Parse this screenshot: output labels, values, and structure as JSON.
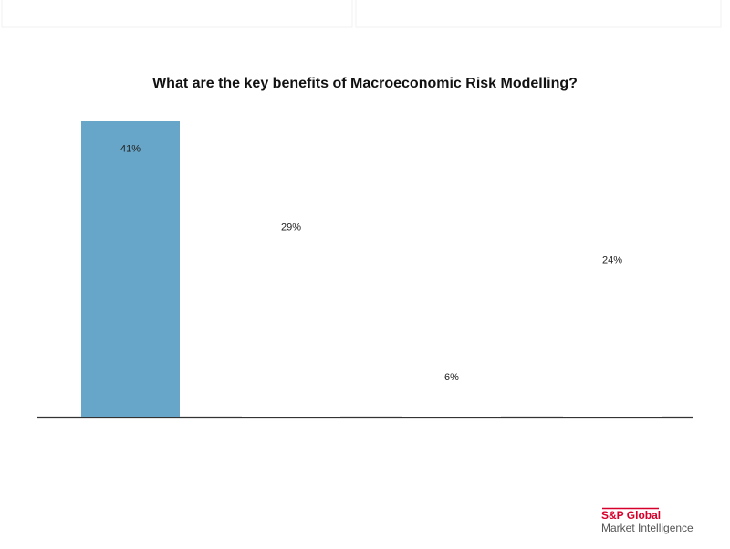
{
  "chart_data": {
    "type": "bar",
    "title": "What are the key benefits of Macroeconomic Risk Modelling?",
    "categories": [
      null,
      null,
      null,
      null
    ],
    "values": [
      41,
      29,
      6,
      24
    ],
    "value_labels": [
      "41%",
      "29%",
      "6%",
      "24%"
    ],
    "colors": [
      "#67a6c8",
      "#ffffff",
      "#ffffff",
      "#ffffff"
    ],
    "ylim": [
      0,
      41
    ]
  },
  "logo": {
    "brand": "S&P Global",
    "tagline": "Market Intelligence"
  }
}
